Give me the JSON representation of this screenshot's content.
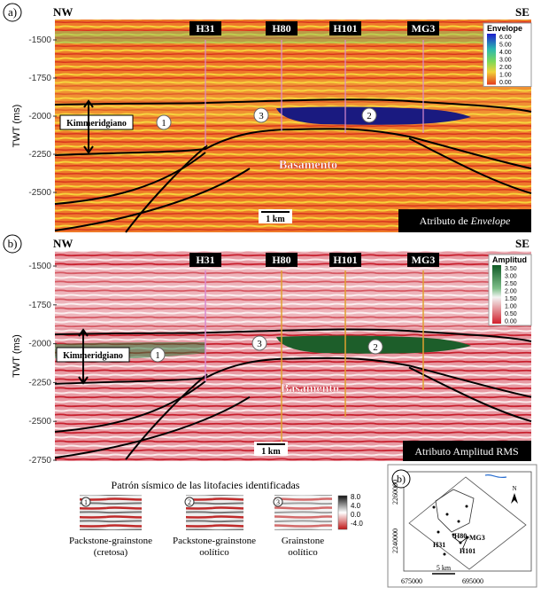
{
  "panel_a": {
    "label": "a)",
    "left": "NW",
    "right": "SE",
    "y_axis_title": "TWT (ms)",
    "y_ticks": [
      -1500,
      -1750,
      -2000,
      -2250,
      -2500
    ],
    "wells": [
      "H31",
      "H80",
      "H101",
      "MG3"
    ],
    "colorbar_title": "Envelope",
    "colorbar_labels": [
      "6.00",
      "5.00",
      "4.00",
      "3.00",
      "2.00",
      "1.00",
      "0.00"
    ],
    "formation": "Kimmeridgiano",
    "zones": [
      "1",
      "3",
      "2"
    ],
    "basement": "Basamento",
    "scale": "1 km",
    "attribute_prefix": "Atributo de",
    "attribute_emph": "Envelope"
  },
  "panel_b": {
    "label": "b)",
    "left": "NW",
    "right": "SE",
    "y_axis_title": "TWT (ms)",
    "y_ticks": [
      -1500,
      -1750,
      -2000,
      -2250,
      -2500,
      -2750
    ],
    "wells": [
      "H31",
      "H80",
      "H101",
      "MG3"
    ],
    "colorbar_title": "Amplitud",
    "colorbar_labels": [
      "3.50",
      "3.00",
      "2.50",
      "2.00",
      "1.50",
      "1.00",
      "0.50",
      "0.00"
    ],
    "formation": "Kimmeridgiano",
    "zones": [
      "1",
      "3",
      "2"
    ],
    "basement": "Basamento",
    "scale": "1 km",
    "attribute": "Atributo Amplitud RMS"
  },
  "facies": {
    "title": "Patrón sísmico de las litofacies identificadas",
    "scale_labels": [
      "8.0",
      "4.0",
      "0.0",
      "-4.0"
    ],
    "items": [
      {
        "marker": "1",
        "name": "Packstone-grainstone",
        "detail": "(cretosa)"
      },
      {
        "marker": "2",
        "name": "Packstone-grainstone",
        "detail": "oolítico"
      },
      {
        "marker": "3",
        "name": "Grainstone",
        "detail": "oolítico"
      }
    ]
  },
  "map": {
    "label": "b)",
    "y_ticks": [
      2260000,
      2240000
    ],
    "x_ticks": [
      675000,
      695000
    ],
    "wells": [
      "H80",
      "MG3",
      "H31",
      "H101"
    ],
    "scale": "5 km",
    "north": "N"
  }
}
